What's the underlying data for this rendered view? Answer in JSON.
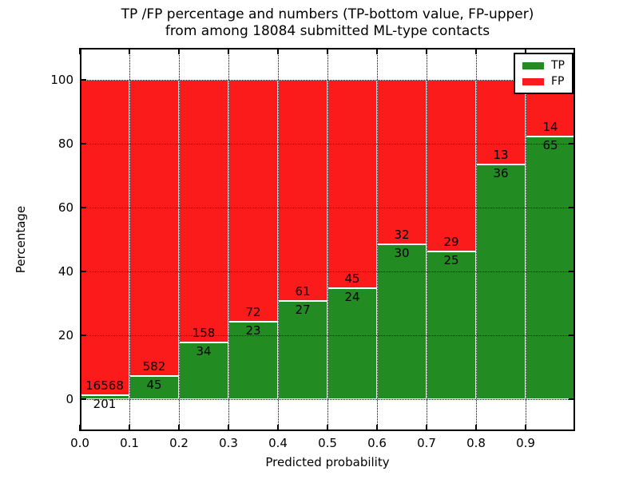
{
  "chart_data": {
    "type": "bar",
    "stacked": true,
    "title_line1": "TP /FP percentage and numbers (TP-bottom value, FP-upper)",
    "title_line2": "from among 18084 submitted ML-type contacts",
    "xlabel": "Predicted probability",
    "ylabel": "Percentage",
    "xlim": [
      0.0,
      1.0
    ],
    "ylim": [
      -10,
      110
    ],
    "bin_width": 0.1,
    "bin_starts": [
      0.0,
      0.1,
      0.2,
      0.3,
      0.4,
      0.5,
      0.6,
      0.7,
      0.8,
      0.9
    ],
    "xticks": [
      "0.0",
      "0.1",
      "0.2",
      "0.3",
      "0.4",
      "0.5",
      "0.6",
      "0.7",
      "0.8",
      "0.9"
    ],
    "ytick_values": [
      0,
      20,
      40,
      60,
      80,
      100
    ],
    "grid": "dotted",
    "series": [
      {
        "name": "TP",
        "color": "#228b22",
        "counts": [
          201,
          45,
          34,
          23,
          27,
          24,
          30,
          25,
          36,
          65
        ]
      },
      {
        "name": "FP",
        "color": "#fb1b1b",
        "counts": [
          16568,
          582,
          158,
          72,
          61,
          45,
          32,
          29,
          13,
          14
        ]
      }
    ],
    "tp_percentages": [
      1.2,
      7.2,
      17.7,
      24.2,
      30.7,
      34.8,
      48.4,
      46.3,
      73.5,
      82.3
    ],
    "legend": {
      "position": "upper right",
      "entries": [
        {
          "label": "TP",
          "color": "#228b22"
        },
        {
          "label": "FP",
          "color": "#fb1b1b"
        }
      ]
    }
  }
}
